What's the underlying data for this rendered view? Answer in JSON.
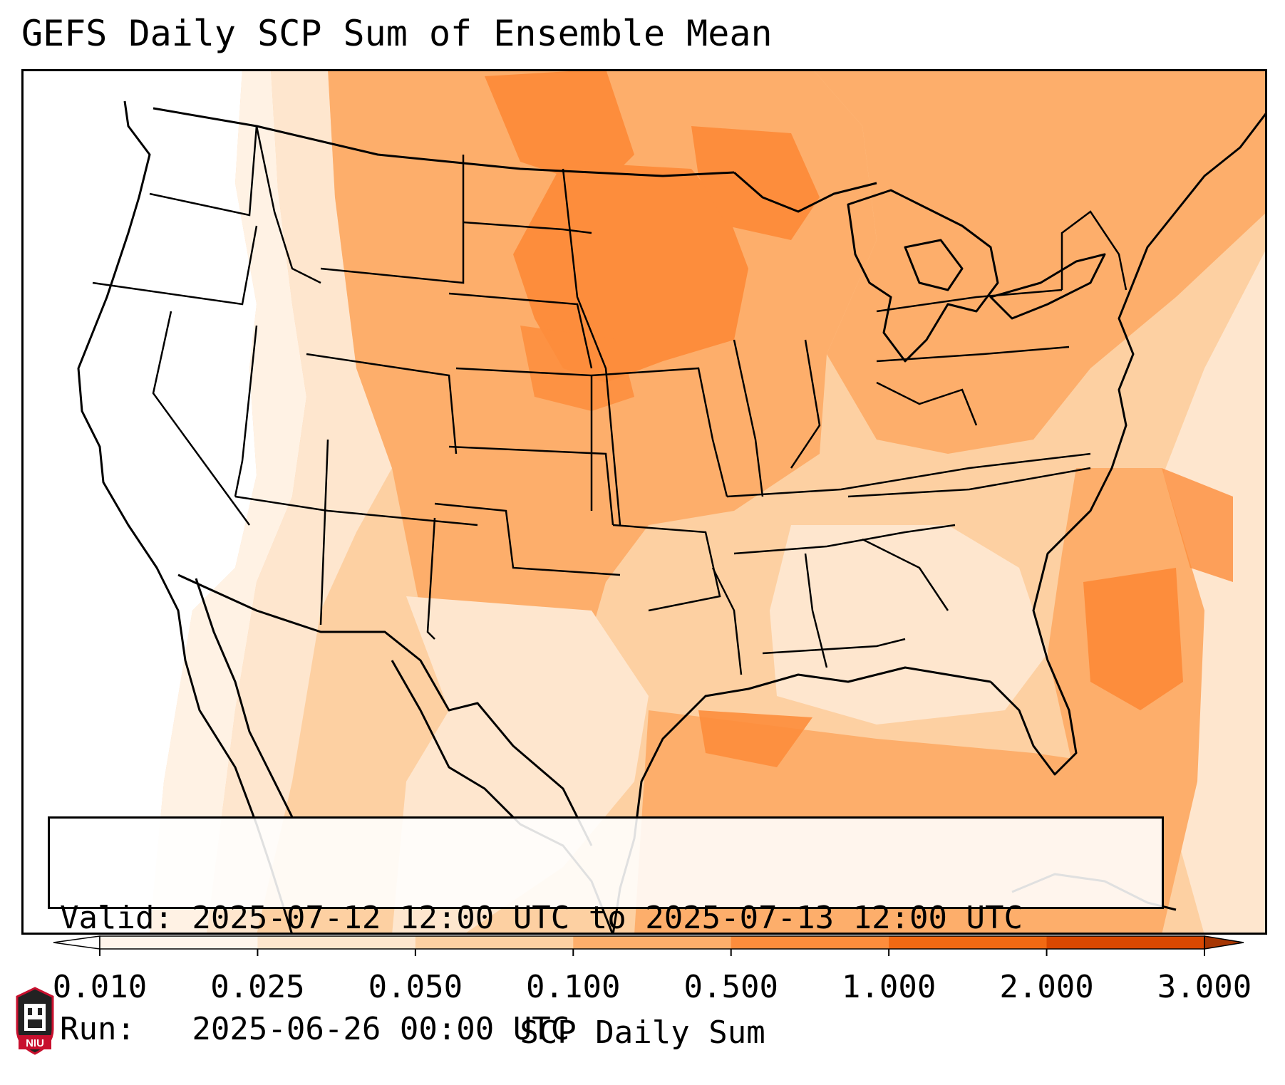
{
  "title": "GEFS Daily SCP Sum of Ensemble Mean",
  "info": {
    "valid_line": "Valid: 2025-07-12 12:00 UTC to 2025-07-13 12:00 UTC",
    "run_line": "Run:   2025-06-26 00:00 UTC"
  },
  "colorbar": {
    "label": "SCP Daily Sum",
    "ticks": [
      "0.010",
      "0.025",
      "0.050",
      "0.100",
      "0.500",
      "1.000",
      "2.000",
      "3.000"
    ],
    "colors": [
      "#fff5eb",
      "#fee6ce",
      "#fdd0a2",
      "#fdae6b",
      "#fd8d3c",
      "#f16913",
      "#d94801"
    ],
    "under_color": "#ffffff",
    "over_color": "#a63603"
  },
  "logo": {
    "text": "NIU",
    "color": "#c8102e"
  }
}
